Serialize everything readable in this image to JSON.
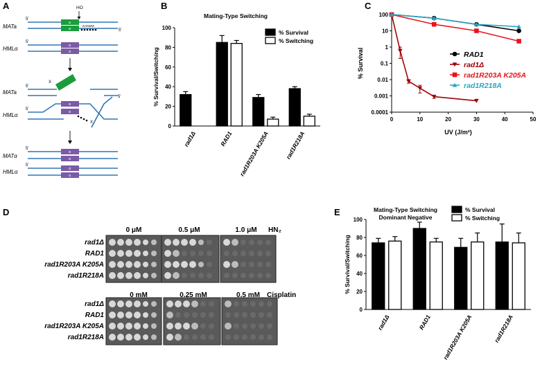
{
  "panels": {
    "A": {
      "letter": "A",
      "labels": {
        "mata1": "MATa",
        "hml1": "HMLα",
        "mata2": "MATa",
        "hml2": "HMLα",
        "mata3": "MATα",
        "hml3": "HMLα",
        "ho": "HO",
        "kanmx": "KANMX",
        "five": "5'",
        "a": "a",
        "alpha": "α",
        "x": "X"
      },
      "colors": {
        "line": "#2e75b6",
        "mata_box": "#1a9e3c",
        "hml_box": "#7b5aa6"
      }
    },
    "B": {
      "letter": "B"
    },
    "C": {
      "letter": "C"
    },
    "D": {
      "letter": "D",
      "hn2": {
        "concs": [
          "0 μM",
          "0.5 μM",
          "1.0 μM"
        ],
        "agent": "HN₂"
      },
      "cis": {
        "concs": [
          "0 mM",
          "0.25 mM",
          "0.5 mM"
        ],
        "agent": "Cisplatin"
      },
      "strains": [
        "rad1Δ",
        "RAD1",
        "rad1R203A K205A",
        "rad1R218A"
      ]
    },
    "E": {
      "letter": "E"
    }
  },
  "chart_data": [
    {
      "id": "B",
      "type": "bar",
      "title": "Mating-Type Switching",
      "ylabel": "% Survival/Switching",
      "ylim": [
        0,
        100
      ],
      "yticks": [
        0,
        20,
        40,
        60,
        80,
        100
      ],
      "categories": [
        "rad1Δ",
        "RAD1",
        "rad1R203A K205A",
        "rad1R218A"
      ],
      "legend": "top-right",
      "series": [
        {
          "name": "% Survival",
          "fill": "#000000",
          "values": [
            32,
            85,
            29,
            38
          ],
          "errors": [
            3,
            7,
            3,
            2
          ]
        },
        {
          "name": "% Switching",
          "fill": "#ffffff",
          "values": [
            null,
            84,
            7,
            10
          ],
          "errors": [
            null,
            3,
            2,
            2
          ]
        }
      ]
    },
    {
      "id": "C",
      "type": "line",
      "xlabel": "UV (J/m²)",
      "ylabel": "% Survival",
      "xlim": [
        0,
        50
      ],
      "xticks": [
        0,
        10,
        20,
        30,
        40,
        50
      ],
      "ylim": [
        0.0001,
        100
      ],
      "yscale": "log",
      "yticks": [
        "100",
        "10",
        "1",
        "0.1",
        "0.01",
        "0.001",
        "0.0001"
      ],
      "legend": "right",
      "series": [
        {
          "name": "RAD1",
          "color": "#000000",
          "marker": "circle",
          "x": [
            0,
            15,
            30,
            45
          ],
          "y": [
            100,
            60,
            25,
            10
          ]
        },
        {
          "name": "rad1Δ",
          "color": "#a00000",
          "marker": "triangle-down",
          "x": [
            0,
            3,
            6,
            10,
            15,
            30
          ],
          "y": [
            100,
            0.6,
            0.008,
            0.003,
            0.0009,
            0.0005
          ],
          "errors": [
            null,
            0.4,
            0.002,
            0.0015,
            0.0002,
            null
          ]
        },
        {
          "name": "rad1R203A K205A",
          "color": "#e8141b",
          "marker": "square",
          "x": [
            0,
            15,
            30,
            45
          ],
          "y": [
            100,
            25,
            10,
            2.3
          ]
        },
        {
          "name": "rad1R218A",
          "color": "#27a5c6",
          "marker": "triangle-up",
          "x": [
            0,
            15,
            30,
            45
          ],
          "y": [
            100,
            60,
            25,
            18
          ]
        }
      ]
    },
    {
      "id": "E",
      "type": "bar",
      "title": "Mating-Type Switching",
      "subtitle": "Dominant Negative",
      "ylabel": "% Survival/Switching",
      "ylim": [
        0,
        100
      ],
      "yticks": [
        0,
        20,
        40,
        60,
        80,
        100
      ],
      "categories": [
        "rad1Δ",
        "RAD1",
        "rad1R203A K205A",
        "rad1R218A"
      ],
      "legend": "top",
      "series": [
        {
          "name": "% Survival",
          "fill": "#000000",
          "values": [
            74,
            90,
            69,
            75
          ],
          "errors": [
            5,
            7,
            10,
            20
          ]
        },
        {
          "name": "% Switching",
          "fill": "#ffffff",
          "values": [
            76,
            75,
            75,
            74
          ],
          "errors": [
            5,
            4,
            10,
            11
          ]
        }
      ]
    }
  ]
}
